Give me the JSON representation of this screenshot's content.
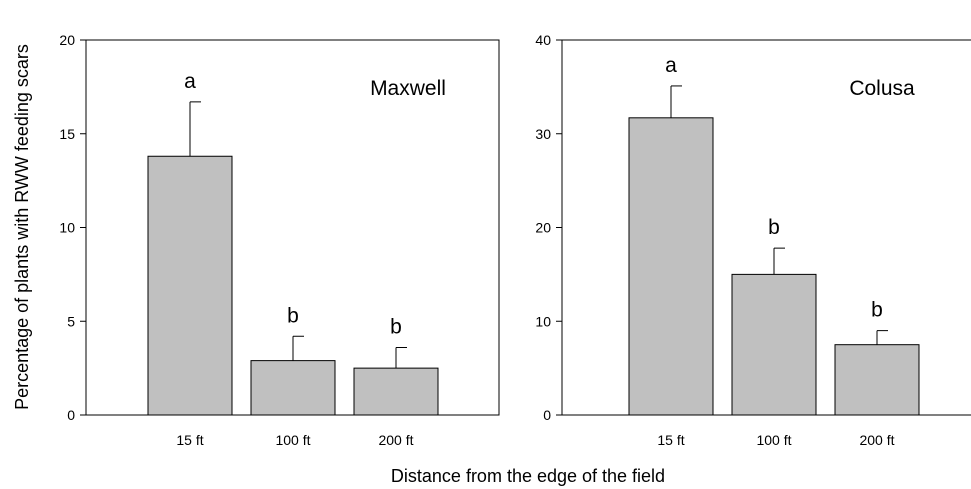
{
  "figure": {
    "ylabel": "Percentage of plants with RWW feeding scars",
    "xlabel": "Distance from the edge of the field"
  },
  "chart_data": [
    {
      "type": "bar",
      "title": "Maxwell",
      "categories": [
        "15 ft",
        "100 ft",
        "200 ft"
      ],
      "values": [
        13.8,
        2.9,
        2.5
      ],
      "errors": [
        2.9,
        1.3,
        1.1
      ],
      "significance": [
        "a",
        "b",
        "b"
      ],
      "ylim": [
        0,
        20
      ],
      "yticks": [
        0,
        5,
        10,
        15,
        20
      ],
      "bar_color": "#c0c0c0"
    },
    {
      "type": "bar",
      "title": "Colusa",
      "categories": [
        "15 ft",
        "100 ft",
        "200 ft"
      ],
      "values": [
        31.7,
        15.0,
        7.5
      ],
      "errors": [
        3.4,
        2.8,
        1.5
      ],
      "significance": [
        "a",
        "b",
        "b"
      ],
      "ylim": [
        0,
        40
      ],
      "yticks": [
        0,
        10,
        20,
        30,
        40
      ],
      "bar_color": "#c0c0c0"
    }
  ]
}
